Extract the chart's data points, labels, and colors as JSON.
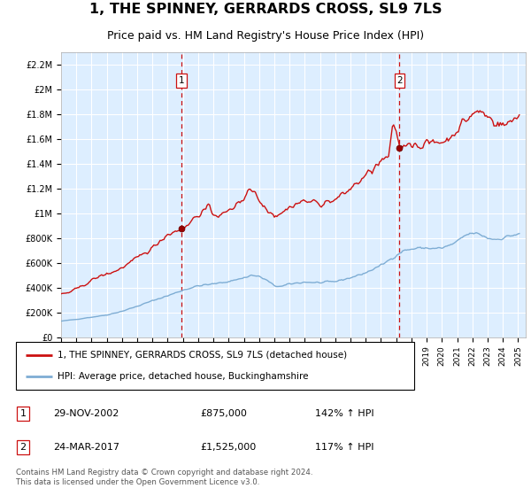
{
  "title": "1, THE SPINNEY, GERRARDS CROSS, SL9 7LS",
  "subtitle": "Price paid vs. HM Land Registry's House Price Index (HPI)",
  "legend_line1": "1, THE SPINNEY, GERRARDS CROSS, SL9 7LS (detached house)",
  "legend_line2": "HPI: Average price, detached house, Buckinghamshire",
  "footer": "Contains HM Land Registry data © Crown copyright and database right 2024.\nThis data is licensed under the Open Government Licence v3.0.",
  "transaction1_date": "29-NOV-2002",
  "transaction1_price": "£875,000",
  "transaction1_hpi": "142% ↑ HPI",
  "transaction1_x": 2002.91,
  "transaction1_y": 875000,
  "transaction2_date": "24-MAR-2017",
  "transaction2_price": "£1,525,000",
  "transaction2_hpi": "117% ↑ HPI",
  "transaction2_x": 2017.22,
  "transaction2_y": 1525000,
  "ylim": [
    0,
    2300000
  ],
  "yticks": [
    0,
    200000,
    400000,
    600000,
    800000,
    1000000,
    1200000,
    1400000,
    1600000,
    1800000,
    2000000,
    2200000
  ],
  "ytick_labels": [
    "£0",
    "£200K",
    "£400K",
    "£600K",
    "£800K",
    "£1M",
    "£1.2M",
    "£1.4M",
    "£1.6M",
    "£1.8M",
    "£2M",
    "£2.2M"
  ],
  "hpi_color": "#7eadd4",
  "price_color": "#cc1111",
  "vline_color": "#cc1111",
  "plot_bg": "#ddeeff",
  "grid_color": "#ffffff",
  "xlim_start": 1995,
  "xlim_end": 2025.5
}
